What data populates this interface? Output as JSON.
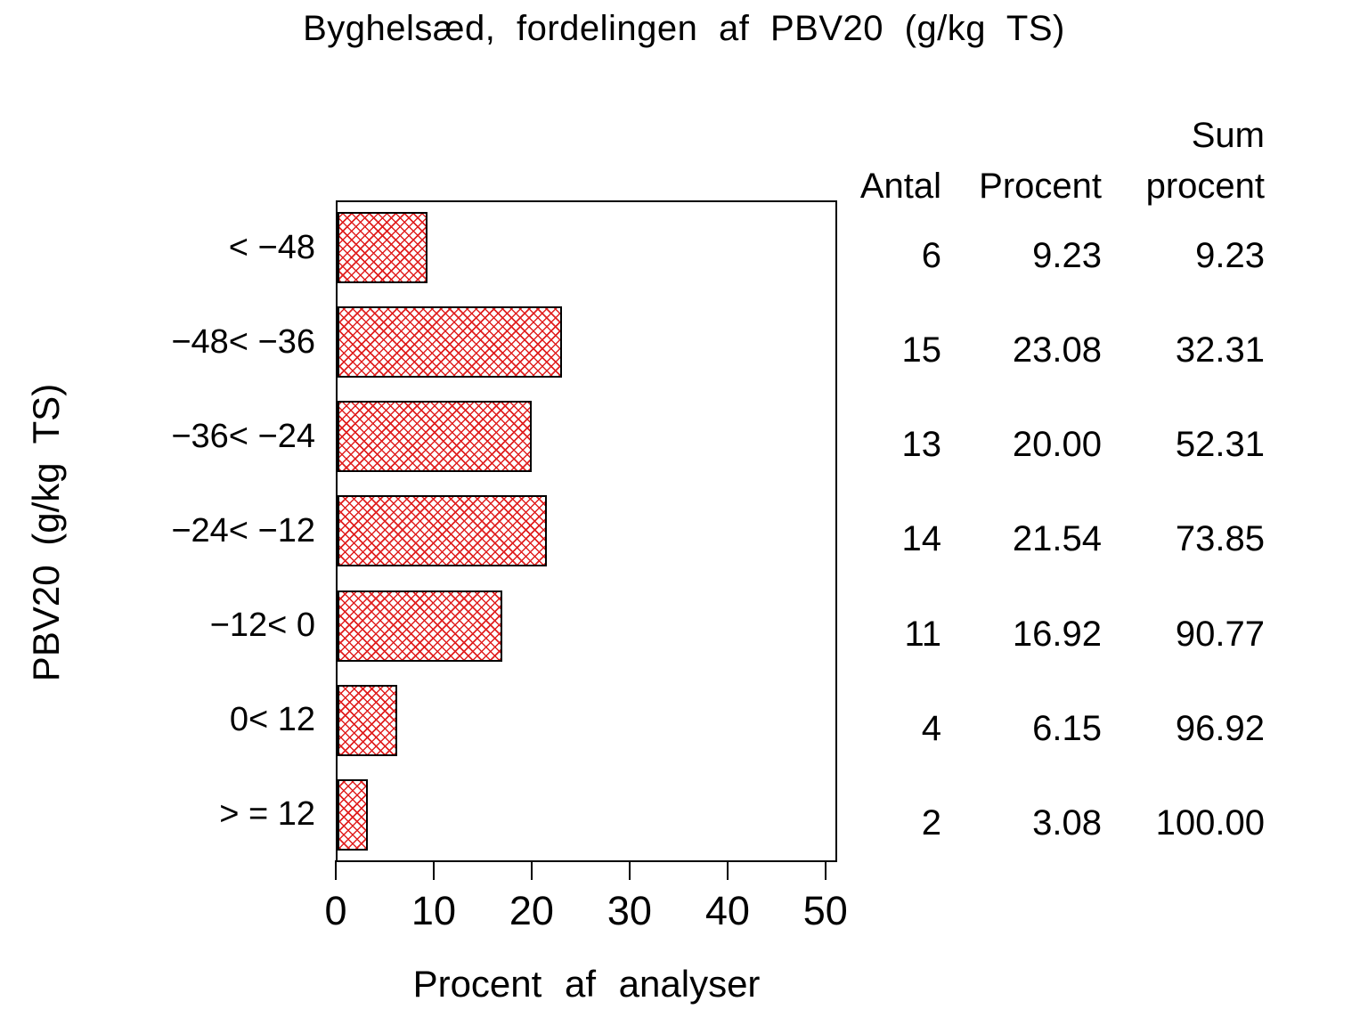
{
  "title": "Byghelsæd, fordelingen af PBV20 (g/kg TS)",
  "chart_data": {
    "type": "bar",
    "orientation": "horizontal",
    "title": "Byghelsæd, fordelingen af PBV20 (g/kg TS)",
    "categories": [
      "< −48",
      "−48< −36",
      "−36< −24",
      "−24< −12",
      "−12< 0",
      "0< 12",
      "> = 12"
    ],
    "values": [
      9.23,
      23.08,
      20.0,
      21.54,
      16.92,
      6.15,
      3.08
    ],
    "xlabel": "Procent af analyser",
    "ylabel": "PBV20 (g/kg TS)",
    "x_ticks": [
      0,
      10,
      20,
      30,
      40,
      50
    ],
    "xlim": [
      0,
      51.2
    ],
    "grid": false,
    "bar_pattern": "red-crosshatch",
    "bar_pattern_color": "#e01f1f",
    "bar_border_color": "#000000"
  },
  "table": {
    "header": {
      "col1": "Antal",
      "col2": "Procent",
      "col3_line1": "Sum",
      "col3_line2": "procent"
    },
    "rows": [
      {
        "antal": "6",
        "procent": "9.23",
        "sum_procent": "9.23"
      },
      {
        "antal": "15",
        "procent": "23.08",
        "sum_procent": "32.31"
      },
      {
        "antal": "13",
        "procent": "20.00",
        "sum_procent": "52.31"
      },
      {
        "antal": "14",
        "procent": "21.54",
        "sum_procent": "73.85"
      },
      {
        "antal": "11",
        "procent": "16.92",
        "sum_procent": "90.77"
      },
      {
        "antal": "4",
        "procent": "6.15",
        "sum_procent": "96.92"
      },
      {
        "antal": "2",
        "procent": "3.08",
        "sum_procent": "100.00"
      }
    ]
  }
}
